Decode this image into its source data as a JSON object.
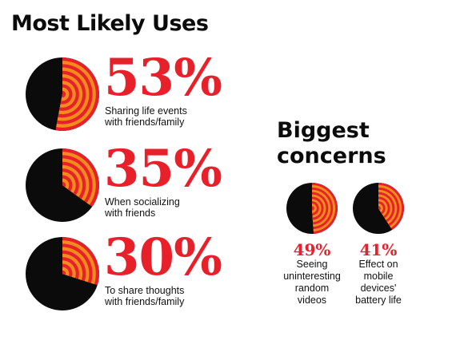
{
  "title": "Most Likely Uses",
  "concerns_title": "Biggest\nconcerns",
  "colors": {
    "red": "#e8202a",
    "orange": "#f28c1d",
    "black": "#0b0b0b"
  },
  "chart_data": [
    {
      "type": "pie",
      "title": "Most Likely Uses",
      "items": [
        {
          "label": "Sharing life events\nwith friends/family",
          "value": 53,
          "display": "53%"
        },
        {
          "label": "When socializing\nwith friends",
          "value": 35,
          "display": "35%"
        },
        {
          "label": "To share thoughts\nwith friends/family",
          "value": 30,
          "display": "30%"
        }
      ]
    },
    {
      "type": "pie",
      "title": "Biggest\nconcerns",
      "items": [
        {
          "label": "Seeing\nuninteresting\nrandom\nvideos",
          "value": 49,
          "display": "49%"
        },
        {
          "label": "Effect on\nmobile\ndevices'\nbattery life",
          "value": 41,
          "display": "41%"
        }
      ]
    }
  ]
}
